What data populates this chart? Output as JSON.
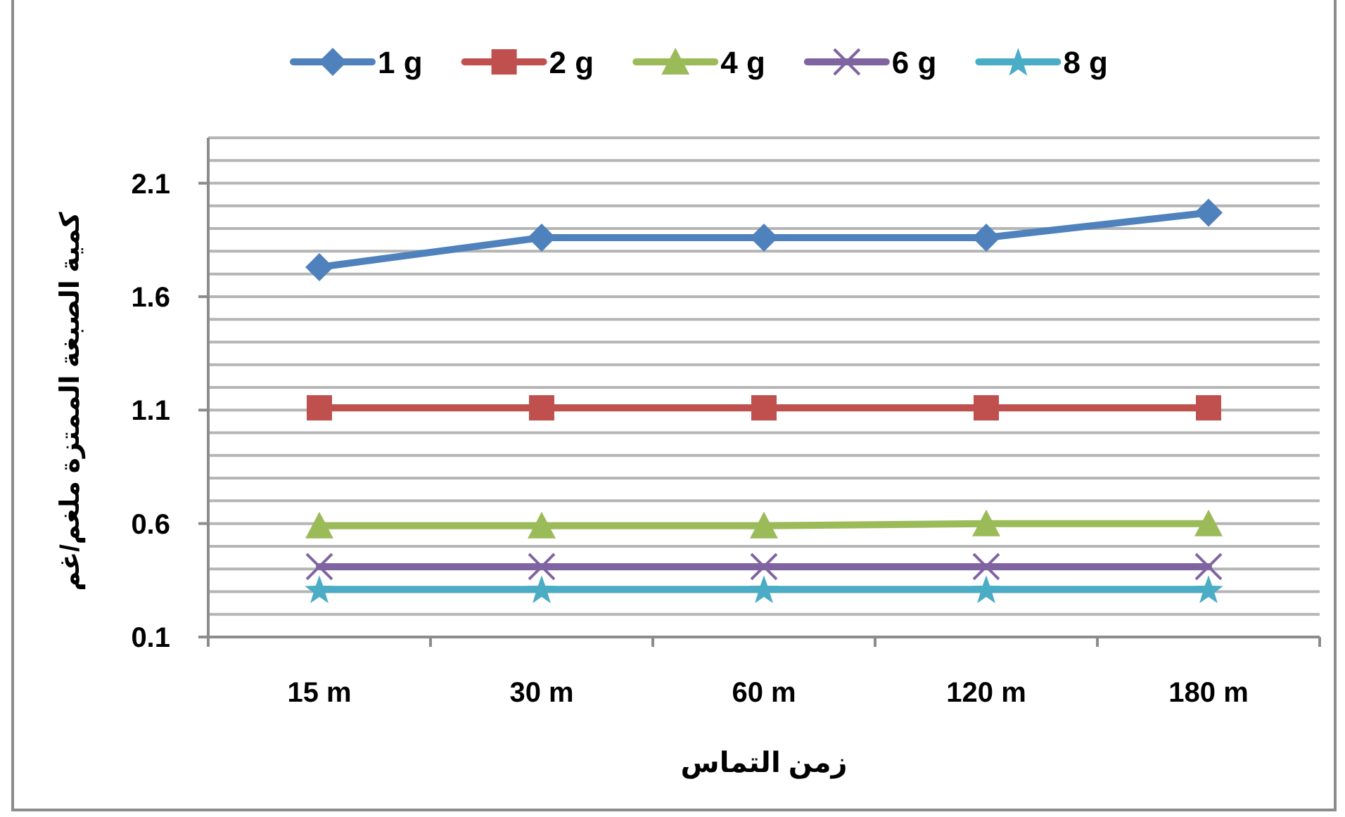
{
  "chart_data": {
    "type": "line",
    "categories": [
      "15 m",
      "30 m",
      "60 m",
      "120 m",
      "180 m"
    ],
    "xlabel": "زمن التماس",
    "ylabel": "كمية الصبغة الممتزة ملغم/غم",
    "ylim": [
      0.1,
      2.3
    ],
    "yticks": [
      0.1,
      {
        "value": 0.2,
        "label": null
      },
      {
        "value": 0.3,
        "label": null
      },
      {
        "value": 0.4,
        "label": null
      },
      {
        "value": 0.5,
        "label": null
      },
      0.6,
      {
        "value": 0.7,
        "label": null
      },
      {
        "value": 0.8,
        "label": null
      },
      {
        "value": 0.9,
        "label": null
      },
      {
        "value": 1.0,
        "label": null
      },
      1.1,
      {
        "value": 1.2,
        "label": null
      },
      {
        "value": 1.3,
        "label": null
      },
      {
        "value": 1.4,
        "label": null
      },
      {
        "value": 1.5,
        "label": null
      },
      1.6,
      {
        "value": 1.7,
        "label": null
      },
      {
        "value": 1.8,
        "label": null
      },
      {
        "value": 1.9,
        "label": null
      },
      {
        "value": 2.0,
        "label": null
      },
      2.1,
      {
        "value": 2.2,
        "label": null
      },
      {
        "value": 2.3,
        "label": null
      }
    ],
    "grid": "y",
    "legend": "top",
    "line_style": "solid",
    "series": [
      {
        "name": "1 g",
        "color": "#4f81bd",
        "marker": "diamond",
        "values": [
          1.73,
          1.86,
          1.86,
          1.86,
          1.97
        ]
      },
      {
        "name": "2 g",
        "color": "#c0504d",
        "marker": "square",
        "values": [
          1.11,
          1.11,
          1.11,
          1.11,
          1.11
        ]
      },
      {
        "name": "4 g",
        "color": "#9bbb59",
        "marker": "triangle",
        "values": [
          0.59,
          0.59,
          0.59,
          0.6,
          0.6
        ]
      },
      {
        "name": "6 g",
        "color": "#8064a2",
        "marker": "cross",
        "values": [
          0.41,
          0.41,
          0.41,
          0.41,
          0.41
        ]
      },
      {
        "name": "8 g",
        "color": "#4bacc6",
        "marker": "star",
        "values": [
          0.31,
          0.31,
          0.31,
          0.31,
          0.31
        ]
      }
    ]
  }
}
